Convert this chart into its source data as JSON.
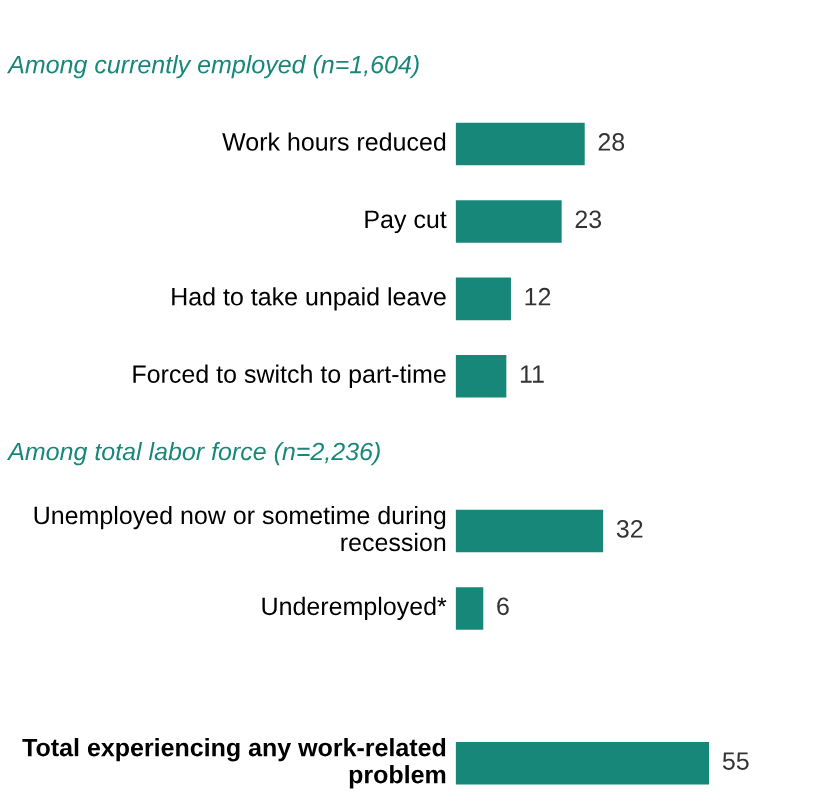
{
  "chart_data": {
    "type": "bar",
    "orientation": "horizontal",
    "categories": [
      null,
      "Work hours reduced",
      "Pay cut",
      "Had to take unpaid leave",
      "Forced to switch to part-time",
      null,
      "Unemployed now or sometime during recession",
      "Underemployed*",
      null,
      "Total experiencing any work-related problem"
    ],
    "values": [
      null,
      28,
      23,
      12,
      11,
      null,
      32,
      6,
      null,
      55
    ],
    "color": "#17877a",
    "data_labels": true,
    "annotations": [
      "Among currently employed (n=1,604)",
      "Among total labor force (n=2,236)"
    ]
  }
}
